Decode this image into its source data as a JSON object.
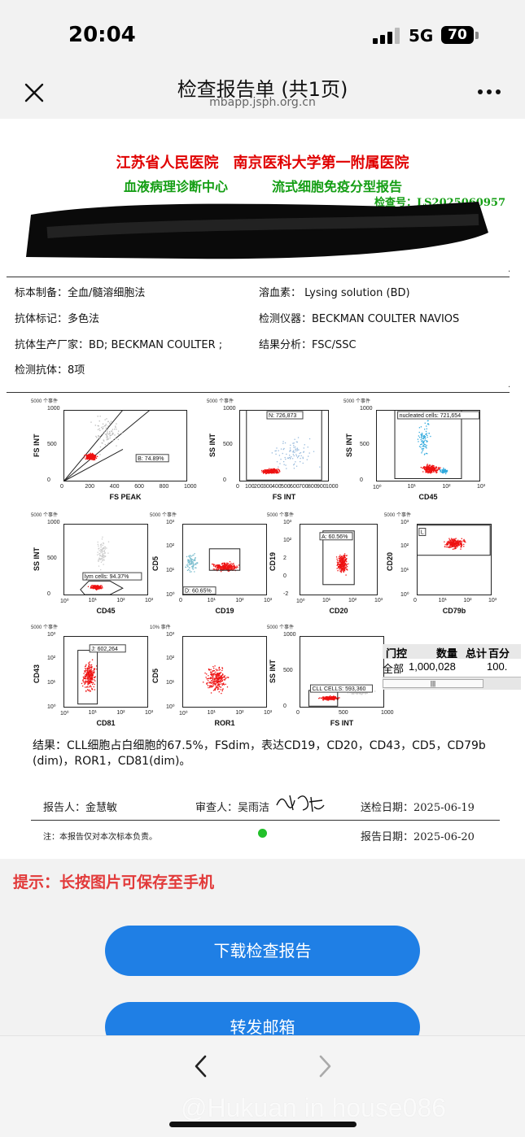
{
  "status_bar": {
    "time": "20:04",
    "network": "5G",
    "battery": "70"
  },
  "nav": {
    "title": "检查报告单 (共1页)",
    "subtitle": "mbapp.jsph.org.cn"
  },
  "report": {
    "hospital": "江苏省人民医院　南京医科大学第一附属医院",
    "department": "血液病理诊断中心",
    "report_type": "流式细胞免疫分型报告",
    "check_no": "检查号：LS2025060957",
    "specimen": "标本制备：全血/髓溶细胞法",
    "lysing": "溶血素： Lysing solution (BD)",
    "antibody_mark": "抗体标记：多色法",
    "instrument": "检测仪器：BECKMAN COULTER NAVIOS",
    "manufacturer": "抗体生产厂家：BD; BECKMAN COULTER ;",
    "analysis": "结果分析：FSC/SSC",
    "antibody_count": "检测抗体：8项",
    "result": "结果：CLL细胞占白细胞的67.5%，FSdim，表达CD19，CD20，CD43，CD5，CD79b (dim)，ROR1，CD81(dim)。",
    "reporter": "报告人：金慧敏",
    "reviewer": "审查人：吴雨洁",
    "signature": "吴雨洁",
    "send_date": "送检日期：2025-06-19",
    "disclaimer": "注：本报告仅对本次标本负责。",
    "report_date": "报告日期：2025-06-20"
  },
  "plots": [
    {
      "events": "5000 个事件",
      "xlabel": "FS PEAK",
      "ylabel": "FS INT",
      "xticks": [
        "0",
        "200",
        "400",
        "600",
        "800",
        "1000"
      ],
      "yticks": [
        "0",
        "500",
        "1000"
      ],
      "gate": "B: 74.89%"
    },
    {
      "events": "5000 个事件",
      "xlabel": "FS INT",
      "ylabel": "SS INT",
      "xticks": [
        "0",
        "100",
        "200",
        "300",
        "400",
        "500",
        "600",
        "700",
        "800",
        "900",
        "1000"
      ],
      "yticks": [
        "0",
        "500",
        "1000"
      ],
      "gate": "N: 726,873"
    },
    {
      "events": "5000 个事件",
      "xlabel": "CD45",
      "ylabel": "SS INT",
      "xticks": [
        "10⁰",
        "10¹",
        "10²",
        "10³"
      ],
      "yticks": [
        "0",
        "500",
        "1000"
      ],
      "gate": "nucleated cells: 721,654"
    },
    {
      "events": "5000 个事件",
      "xlabel": "CD45",
      "ylabel": "SS INT",
      "xticks": [
        "10⁰",
        "10¹",
        "10²",
        "10³"
      ],
      "yticks": [
        "0",
        "500",
        "1000"
      ],
      "gate": "lym cells: 94.37%"
    },
    {
      "events": "5000 个事件",
      "xlabel": "CD19",
      "ylabel": "CD5",
      "xticks": [
        "0",
        "10¹",
        "10²",
        "10³"
      ],
      "yticks": [
        "10⁰",
        "10¹",
        "10²",
        "10³"
      ],
      "gate": "D: 60.65%"
    },
    {
      "events": "5000 个事件",
      "xlabel": "CD20",
      "ylabel": "CD19",
      "xticks": [
        "10⁰",
        "10¹",
        "10²",
        "10³"
      ],
      "yticks": [
        "-2",
        "0",
        "2",
        "10²",
        "10³"
      ],
      "gate": "A: 60.56%"
    },
    {
      "events": "5000 个事件",
      "xlabel": "CD79b",
      "ylabel": "CD20",
      "xticks": [
        "0",
        "10¹",
        "10²",
        "10³"
      ],
      "yticks": [
        "10⁰",
        "10¹",
        "10²",
        "10³"
      ],
      "gate": "L"
    },
    {
      "events": "5000 个事件",
      "xlabel": "CD81",
      "ylabel": "CD43",
      "xticks": [
        "10⁰",
        "10¹",
        "10²",
        "10³"
      ],
      "yticks": [
        "10⁰",
        "10¹",
        "10²",
        "10³"
      ],
      "gate": "J: 602,264"
    },
    {
      "events": "10% 事件",
      "xlabel": "ROR1",
      "ylabel": "CD5",
      "xticks": [
        "10⁰",
        "10¹",
        "10²",
        "10³"
      ],
      "yticks": [
        "10⁰",
        "10¹",
        "10²",
        "10³"
      ],
      "gate": ""
    },
    {
      "events": "5000 个事件",
      "xlabel": "FS INT",
      "ylabel": "SS INT",
      "xticks": [
        "0",
        "500",
        "1000"
      ],
      "yticks": [
        "0",
        "500",
        "1000"
      ],
      "gate": "CLL CELLS: 593,360"
    }
  ],
  "control_table": {
    "headers": [
      "门控",
      "数量",
      "总计",
      "百分"
    ],
    "row": [
      "全部",
      "1,000,028",
      "100."
    ]
  },
  "tip": "提示：长按图片可保存至手机",
  "buttons": {
    "download": "下载检查报告",
    "forward": "转发邮箱"
  },
  "watermark": "@Hukuan in house086",
  "colors": {
    "red": "#e00000",
    "green": "#149e14",
    "blue": "#1f7fe5",
    "tip": "#e23a3a"
  }
}
